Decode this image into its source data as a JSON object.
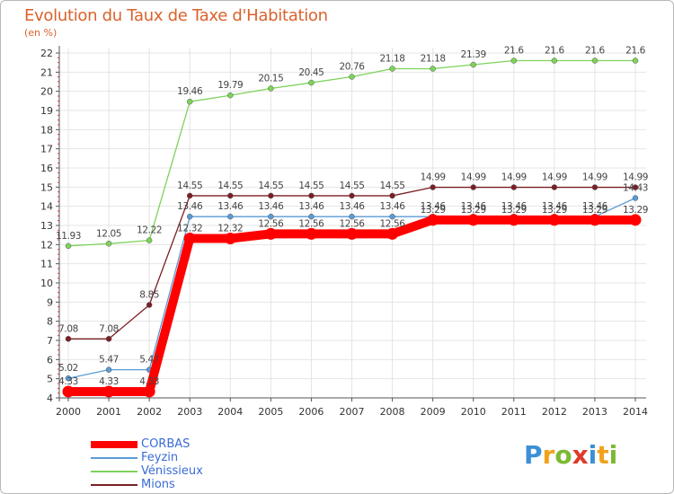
{
  "header": {
    "title": "Evolution du Taux de Taxe d'Habitation",
    "subtitle": "(en %)"
  },
  "chart_data": {
    "type": "line",
    "title": "Evolution du Taux de Taxe d'Habitation",
    "ylabel": "(en %)",
    "xlabel": "",
    "x": [
      "2000",
      "2001",
      "2002",
      "2003",
      "2004",
      "2005",
      "2006",
      "2007",
      "2008",
      "2009",
      "2010",
      "2011",
      "2012",
      "2013",
      "2014"
    ],
    "ylim": [
      4,
      22
    ],
    "yticks": [
      4,
      5,
      6,
      7,
      8,
      9,
      10,
      11,
      12,
      13,
      14,
      15,
      16,
      17,
      18,
      19,
      20,
      21,
      22
    ],
    "grid": true,
    "legend_position": "bottom-left",
    "series": [
      {
        "name": "CORBAS",
        "color": "#ff0000",
        "values": [
          4.33,
          4.33,
          4.33,
          12.32,
          12.32,
          12.56,
          12.56,
          12.56,
          12.56,
          13.29,
          13.29,
          13.29,
          13.29,
          13.29,
          13.29
        ],
        "labels": [
          "4.33",
          "4.33",
          "4.33",
          "12.32",
          "12.32",
          "12.56",
          "12.56",
          "12.56",
          "12.56",
          "13.29",
          "13.29",
          "13.29",
          "13.29",
          "13.29",
          "13.29"
        ]
      },
      {
        "name": "Feyzin",
        "color": "#5b9bd5",
        "values": [
          5.02,
          5.47,
          5.47,
          13.46,
          13.46,
          13.46,
          13.46,
          13.46,
          13.46,
          13.46,
          13.46,
          13.46,
          13.46,
          13.46,
          14.43
        ],
        "labels": [
          "5.02",
          "5.47",
          "5.47",
          "13.46",
          "13.46",
          "13.46",
          "13.46",
          "13.46",
          "13.46",
          "13.46",
          "13.46",
          "13.46",
          "13.46",
          "13.46",
          "14.43"
        ]
      },
      {
        "name": "Vénissieux",
        "color": "#7dd35a",
        "values": [
          11.93,
          12.05,
          12.22,
          19.46,
          19.79,
          20.15,
          20.45,
          20.76,
          21.18,
          21.18,
          21.39,
          21.6,
          21.6,
          21.6,
          21.6
        ],
        "labels": [
          "11.93",
          "12.05",
          "12.22",
          "19.46",
          "19.79",
          "20.15",
          "20.45",
          "20.76",
          "21.18",
          "21.18",
          "21.39",
          "21.6",
          "21.6",
          "21.6",
          "21.6"
        ]
      },
      {
        "name": "Mions",
        "color": "#7b1f25",
        "values": [
          7.08,
          7.08,
          8.85,
          14.55,
          14.55,
          14.55,
          14.55,
          14.55,
          14.55,
          14.99,
          14.99,
          14.99,
          14.99,
          14.99,
          14.99
        ],
        "labels": [
          "7.08",
          "7.08",
          "8.85",
          "14.55",
          "14.55",
          "14.55",
          "14.55",
          "14.55",
          "14.55",
          "14.99",
          "14.99",
          "14.99",
          "14.99",
          "14.99",
          "14.99"
        ]
      }
    ]
  },
  "legend": {
    "items": [
      {
        "label": "CORBAS",
        "color": "#ff0000"
      },
      {
        "label": "Feyzin",
        "color": "#5b9bd5"
      },
      {
        "label": "Vénissieux",
        "color": "#7dd35a"
      },
      {
        "label": "Mions",
        "color": "#7b1f25"
      }
    ]
  },
  "logo": {
    "letters": [
      "P",
      "r",
      "o",
      "x",
      "i",
      "t",
      "i"
    ],
    "colors": [
      "#3b8fd6",
      "#f1a21c",
      "#7cb934",
      "#e03a2b",
      "#3b8fd6",
      "#f1a21c",
      "#7cb934"
    ]
  }
}
